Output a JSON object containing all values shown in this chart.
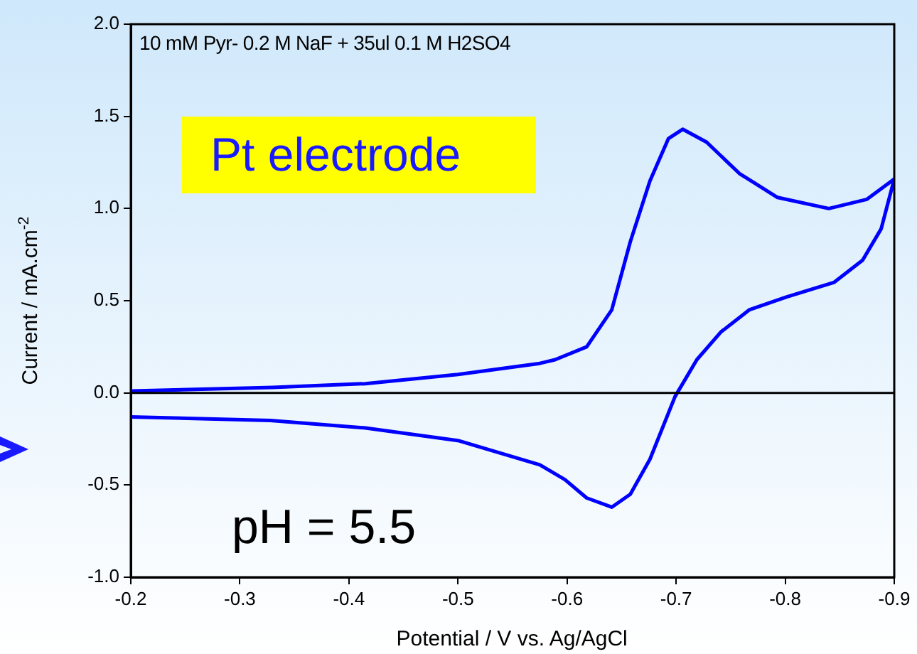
{
  "chart_data": {
    "type": "line",
    "xlabel": "Potential / V vs. Ag/AgCl",
    "ylabel": "Current / mA.cm$^{-2}$",
    "annotations": [
      "10 mM Pyr- 0.2 M NaF + 35ul 0.1 M H2SO4",
      "Pt electrode",
      "pH = 5.5"
    ],
    "xlim": [
      -0.2,
      -0.9
    ],
    "xticks": [
      -0.2,
      -0.3,
      -0.4,
      -0.5,
      -0.6,
      -0.7,
      -0.8,
      -0.9
    ],
    "ylim": [
      -1,
      2
    ],
    "yticks": [
      {
        "value": -1,
        "label": "-1.0"
      },
      -0.5,
      {
        "value": 0,
        "label": "0.0"
      },
      0.5,
      {
        "value": 1,
        "label": "1.0"
      },
      1.5,
      {
        "value": 2,
        "label": "2.0"
      }
    ],
    "ref_lines": [
      {
        "axis": "y",
        "value": 0,
        "color": "#000000"
      }
    ],
    "grid": false,
    "legend": false,
    "marker": "none",
    "line_style": "solid",
    "series": [
      {
        "color": "#0000ff",
        "x": [
          -0.2,
          -0.33,
          -0.415,
          -0.5,
          -0.575,
          -0.589,
          -0.618,
          -0.641,
          -0.658,
          -0.676,
          -0.693,
          -0.706,
          -0.728,
          -0.758,
          -0.793,
          -0.84,
          -0.875,
          -0.9,
          -0.888,
          -0.871,
          -0.845,
          -0.801,
          -0.767,
          -0.741,
          -0.719,
          -0.699,
          -0.676,
          -0.658,
          -0.641,
          -0.618,
          -0.598,
          -0.575,
          -0.501,
          -0.415,
          -0.328,
          -0.2
        ],
        "values": [
          0.01,
          0.03,
          0.05,
          0.1,
          0.16,
          0.18,
          0.25,
          0.45,
          0.82,
          1.15,
          1.38,
          1.43,
          1.36,
          1.19,
          1.06,
          1.0,
          1.05,
          1.16,
          0.89,
          0.72,
          0.6,
          0.52,
          0.45,
          0.33,
          0.18,
          -0.02,
          -0.36,
          -0.55,
          -0.62,
          -0.57,
          -0.47,
          -0.39,
          -0.26,
          -0.19,
          -0.15,
          -0.13
        ]
      }
    ]
  }
}
